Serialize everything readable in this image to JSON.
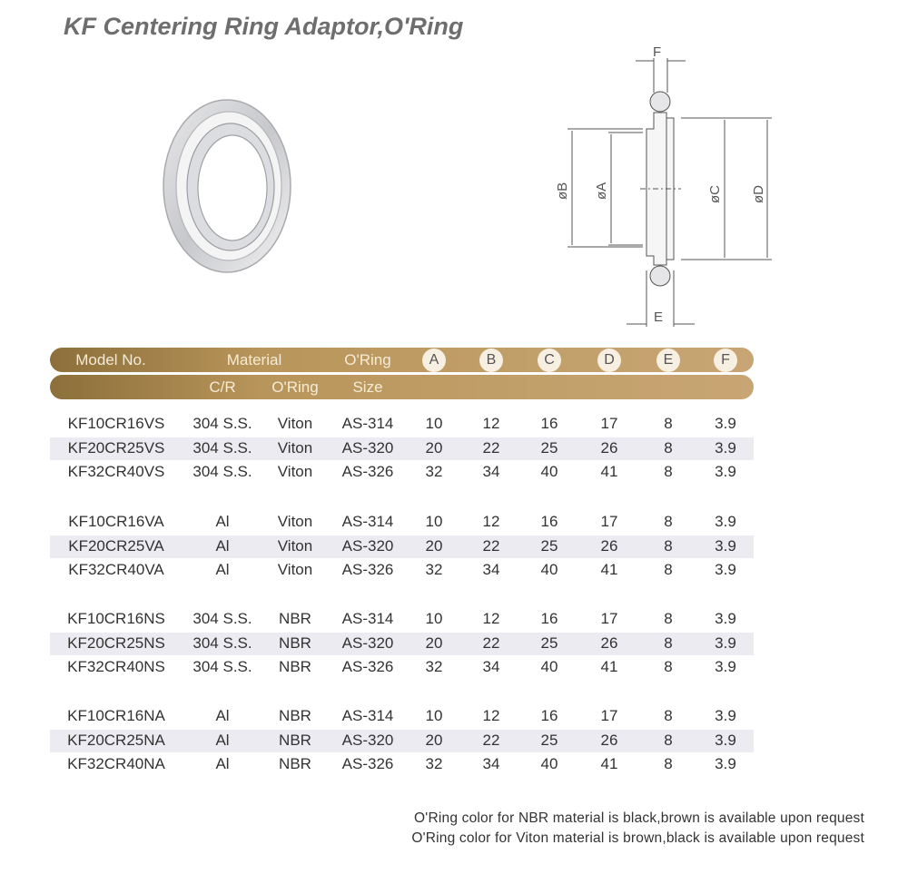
{
  "title": "KF Centering Ring Adaptor,O'Ring",
  "diagram": {
    "labels": {
      "F": "F",
      "E": "E",
      "A": "øA",
      "B": "øB",
      "C": "øC",
      "D": "øD"
    }
  },
  "table": {
    "header1": {
      "model": "Model  No.",
      "material": "Material",
      "oring": "O'Ring",
      "dims": [
        "A",
        "B",
        "C",
        "D",
        "E",
        "F"
      ]
    },
    "header2": {
      "cr": "C/R",
      "oring": "O'Ring",
      "size": "Size"
    },
    "groups": [
      [
        [
          "KF10CR16VS",
          "304 S.S.",
          "Viton",
          "AS-314",
          "10",
          "12",
          "16",
          "17",
          "8",
          "3.9"
        ],
        [
          "KF20CR25VS",
          "304 S.S.",
          "Viton",
          "AS-320",
          "20",
          "22",
          "25",
          "26",
          "8",
          "3.9"
        ],
        [
          "KF32CR40VS",
          "304 S.S.",
          "Viton",
          "AS-326",
          "32",
          "34",
          "40",
          "41",
          "8",
          "3.9"
        ]
      ],
      [
        [
          "KF10CR16VA",
          "Al",
          "Viton",
          "AS-314",
          "10",
          "12",
          "16",
          "17",
          "8",
          "3.9"
        ],
        [
          "KF20CR25VA",
          "Al",
          "Viton",
          "AS-320",
          "20",
          "22",
          "25",
          "26",
          "8",
          "3.9"
        ],
        [
          "KF32CR40VA",
          "Al",
          "Viton",
          "AS-326",
          "32",
          "34",
          "40",
          "41",
          "8",
          "3.9"
        ]
      ],
      [
        [
          "KF10CR16NS",
          "304 S.S.",
          "NBR",
          "AS-314",
          "10",
          "12",
          "16",
          "17",
          "8",
          "3.9"
        ],
        [
          "KF20CR25NS",
          "304 S.S.",
          "NBR",
          "AS-320",
          "20",
          "22",
          "25",
          "26",
          "8",
          "3.9"
        ],
        [
          "KF32CR40NS",
          "304 S.S.",
          "NBR",
          "AS-326",
          "32",
          "34",
          "40",
          "41",
          "8",
          "3.9"
        ]
      ],
      [
        [
          "KF10CR16NA",
          "Al",
          "NBR",
          "AS-314",
          "10",
          "12",
          "16",
          "17",
          "8",
          "3.9"
        ],
        [
          "KF20CR25NA",
          "Al",
          "NBR",
          "AS-320",
          "20",
          "22",
          "25",
          "26",
          "8",
          "3.9"
        ],
        [
          "KF32CR40NA",
          "Al",
          "NBR",
          "AS-326",
          "32",
          "34",
          "40",
          "41",
          "8",
          "3.9"
        ]
      ]
    ]
  },
  "notes": [
    "O'Ring color for NBR material is black,brown is available upon request",
    "O'Ring color for Viton material is brown,black is available upon request"
  ],
  "colors": {
    "header_bar": "#b8955a",
    "alt_row": "#ecebf1"
  }
}
